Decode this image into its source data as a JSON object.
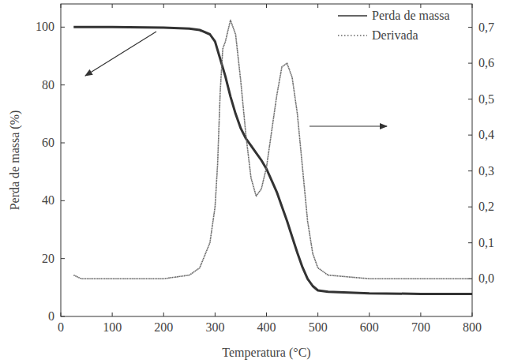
{
  "chart_data": {
    "type": "line",
    "x_label": "Temperatura (°C)",
    "y_label": "Perda de massa (%)",
    "legend": "top-right",
    "x": [
      25,
      40,
      100,
      200,
      250,
      270,
      290,
      300,
      305,
      310,
      315,
      320,
      330,
      340,
      350,
      360,
      370,
      380,
      390,
      400,
      410,
      420,
      430,
      440,
      450,
      460,
      470,
      480,
      490,
      500,
      520,
      600,
      700,
      800
    ],
    "series": [
      {
        "name": "Perda de massa",
        "color": "#333333",
        "line_style": "solid",
        "values": [
          100,
          100,
          100,
          99.8,
          99.5,
          99,
          97.5,
          95,
          92,
          89,
          86,
          83,
          76,
          70,
          65,
          61.5,
          59,
          56.5,
          54,
          51,
          47,
          43,
          38,
          33,
          27.5,
          22,
          17,
          13,
          10.5,
          9,
          8.5,
          8,
          7.8,
          7.8
        ]
      },
      {
        "name": "Derivada",
        "color": "#666666",
        "line_style": "dotted",
        "axis": "y2",
        "values": [
          0.01,
          0.0,
          0.0,
          0.0,
          0.01,
          0.03,
          0.1,
          0.2,
          0.32,
          0.52,
          0.64,
          0.66,
          0.72,
          0.68,
          0.55,
          0.4,
          0.28,
          0.23,
          0.25,
          0.31,
          0.41,
          0.51,
          0.59,
          0.6,
          0.56,
          0.46,
          0.31,
          0.16,
          0.07,
          0.03,
          0.01,
          0.0,
          0.0,
          0.0
        ]
      }
    ],
    "xlim": [
      0,
      800
    ],
    "xticks": [
      0,
      100,
      200,
      300,
      400,
      500,
      600,
      700,
      800
    ],
    "ylim": [
      0,
      108
    ],
    "yticks": [
      0,
      20,
      40,
      60,
      80,
      100
    ],
    "y2lim": [
      -0.105,
      0.765
    ],
    "y2ticks": [
      {
        "value": 0.0,
        "label": "0,0"
      },
      {
        "value": 0.1,
        "label": "0,1"
      },
      {
        "value": 0.2,
        "label": "0,2"
      },
      {
        "value": 0.3,
        "label": "0,3"
      },
      {
        "value": 0.4,
        "label": "0,4"
      },
      {
        "value": 0.5,
        "label": "0,5"
      },
      {
        "value": 0.6,
        "label": "0,6"
      },
      {
        "value": 0.7,
        "label": "0,7"
      }
    ]
  }
}
